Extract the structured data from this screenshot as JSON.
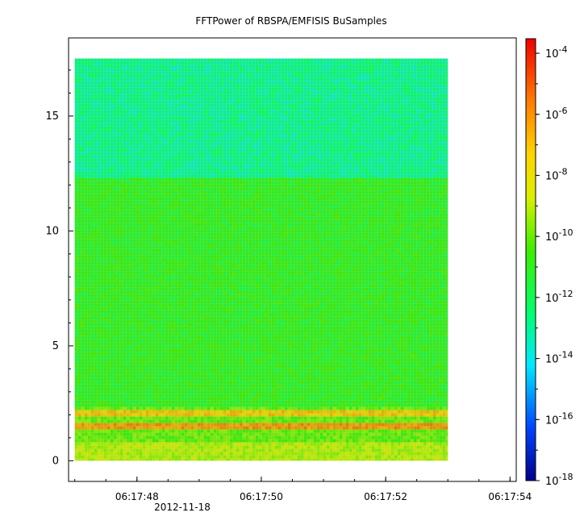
{
  "chart_data": {
    "type": "heatmap",
    "title": "FFTPower of RBSPA/EMFISIS  BuSamples",
    "xlabel": "",
    "ylabel": "",
    "x_ticks": [
      "06:17:48",
      "06:17:50",
      "06:17:52",
      "06:17:54"
    ],
    "x_date_label": "2012-11-18",
    "y_ticks": [
      0,
      5,
      10,
      15
    ],
    "ylim": [
      -0.9,
      18.4
    ],
    "xlim": [
      "06:17:46.9",
      "06:17:54.1"
    ],
    "data_extent": {
      "x": [
        "06:17:47.0",
        "06:17:53.0"
      ],
      "y": [
        0,
        17.5
      ]
    },
    "colorbar": {
      "scale": "log",
      "range": [
        1e-18,
        0.0003
      ],
      "tick_labels": [
        {
          "base": "10",
          "exp": "-4"
        },
        {
          "base": "10",
          "exp": "-6"
        },
        {
          "base": "10",
          "exp": "-8"
        },
        {
          "base": "10",
          "exp": "-10"
        },
        {
          "base": "10",
          "exp": "-12"
        },
        {
          "base": "10",
          "exp": "-14"
        },
        {
          "base": "10",
          "exp": "-16"
        },
        {
          "base": "10",
          "exp": "-18"
        }
      ]
    },
    "bands": [
      {
        "y_range": [
          12.3,
          17.5
        ],
        "level": "1e-13"
      },
      {
        "y_range": [
          2.3,
          12.3
        ],
        "level": "1e-11"
      },
      {
        "y_range": [
          1.9,
          2.2
        ],
        "level": "1e-7"
      },
      {
        "y_range": [
          1.3,
          1.7
        ],
        "level": "1e-6"
      },
      {
        "y_range": [
          0,
          0.8
        ],
        "level": "1e-9"
      }
    ]
  }
}
